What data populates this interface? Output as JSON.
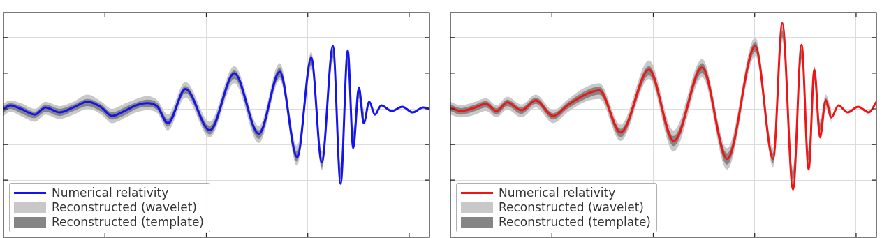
{
  "chart_data": [
    {
      "type": "line",
      "xlim": [
        0.25,
        0.46
      ],
      "ylim": [
        -1.8,
        1.35
      ],
      "xticks": [
        0.3,
        0.35,
        0.4,
        0.45
      ],
      "yticks": [
        -1,
        -0.5,
        0,
        0.5,
        1
      ],
      "grid": true,
      "tick_labels": false,
      "legend": "lower left",
      "series": [
        {
          "name": "Numerical relativity",
          "type": "line",
          "color": "#1414f0",
          "x": [
            0.25,
            0.2534,
            0.2586,
            0.2655,
            0.2707,
            0.2776,
            0.2845,
            0.2914,
            0.2983,
            0.3034,
            0.3103,
            0.3155,
            0.3207,
            0.3259,
            0.331,
            0.3397,
            0.3517,
            0.3638,
            0.3759,
            0.3862,
            0.3948,
            0.4017,
            0.4069,
            0.4124,
            0.4162,
            0.4197,
            0.4224,
            0.4252,
            0.4276,
            0.4303,
            0.4331,
            0.4362,
            0.4414,
            0.4466,
            0.4517,
            0.4569,
            0.46
          ],
          "values": [
            0.0,
            0.05,
            0.0,
            -0.08,
            0.02,
            -0.05,
            0.02,
            0.1,
            0.02,
            -0.1,
            -0.02,
            0.05,
            0.08,
            0.03,
            -0.2,
            0.28,
            -0.3,
            0.5,
            -0.35,
            0.52,
            -0.68,
            0.72,
            -0.75,
            0.88,
            -1.05,
            0.82,
            -0.55,
            0.3,
            -0.2,
            0.1,
            -0.08,
            0.05,
            -0.03,
            0.03,
            -0.05,
            0.02,
            0.0
          ]
        },
        {
          "name": "Reconstructed (wavelet)",
          "type": "band",
          "color": "#c8c8c8",
          "x": [
            0.25,
            0.2534,
            0.2586,
            0.2655,
            0.2707,
            0.2776,
            0.2845,
            0.2914,
            0.2983,
            0.3034,
            0.3103,
            0.3155,
            0.3207,
            0.3259,
            0.331,
            0.3397,
            0.3517,
            0.3638,
            0.3759,
            0.3862,
            0.3948,
            0.4017,
            0.4069,
            0.4124,
            0.4162,
            0.4197,
            0.4224,
            0.4252,
            0.4276
          ],
          "lower": [
            -0.1,
            -0.04,
            -0.1,
            -0.18,
            -0.08,
            -0.14,
            -0.08,
            0.0,
            -0.08,
            -0.2,
            -0.12,
            -0.05,
            -0.02,
            -0.06,
            -0.3,
            0.16,
            -0.4,
            0.36,
            -0.48,
            0.4,
            -0.8,
            0.56,
            -0.86,
            0.66,
            -1.0,
            0.55,
            -0.5,
            0.1,
            -0.2
          ],
          "upper": [
            0.08,
            0.12,
            0.08,
            0.0,
            0.1,
            0.04,
            0.1,
            0.2,
            0.1,
            0.0,
            0.08,
            0.14,
            0.18,
            0.12,
            -0.08,
            0.38,
            -0.18,
            0.6,
            -0.24,
            0.64,
            -0.52,
            0.8,
            -0.6,
            0.88,
            -0.76,
            0.78,
            -0.28,
            0.3,
            0.0
          ]
        },
        {
          "name": "Reconstructed (template)",
          "type": "band",
          "color": "#858585",
          "x": [
            0.25,
            0.2534,
            0.2586,
            0.2655,
            0.2707,
            0.2776,
            0.2845,
            0.2914,
            0.2983,
            0.3034,
            0.3103,
            0.3155,
            0.3207,
            0.3259,
            0.331,
            0.3397,
            0.3517,
            0.3638,
            0.3759,
            0.3862,
            0.3948,
            0.4017,
            0.4069,
            0.4124,
            0.4162,
            0.4197,
            0.4224,
            0.4252,
            0.4276
          ],
          "lower": [
            -0.05,
            0.0,
            -0.06,
            -0.13,
            -0.04,
            -0.1,
            -0.03,
            0.04,
            -0.04,
            -0.15,
            -0.08,
            0.0,
            0.03,
            -0.02,
            -0.25,
            0.22,
            -0.36,
            0.42,
            -0.42,
            0.44,
            -0.74,
            0.62,
            -0.82,
            0.72,
            -0.98,
            0.6,
            -0.45,
            0.15,
            -0.15
          ],
          "upper": [
            0.04,
            0.08,
            0.04,
            -0.04,
            0.06,
            0.0,
            0.06,
            0.14,
            0.06,
            -0.05,
            0.03,
            0.09,
            0.13,
            0.08,
            -0.14,
            0.32,
            -0.24,
            0.54,
            -0.3,
            0.58,
            -0.6,
            0.76,
            -0.68,
            0.84,
            -0.82,
            0.74,
            -0.32,
            0.25,
            -0.05
          ]
        }
      ]
    },
    {
      "type": "line",
      "xlim": [
        0.25,
        0.46
      ],
      "ylim": [
        -1.8,
        1.35
      ],
      "xticks": [
        0.3,
        0.35,
        0.4,
        0.45
      ],
      "yticks": [
        -1,
        -0.5,
        0,
        0.5,
        1
      ],
      "grid": true,
      "tick_labels": false,
      "legend": "lower left",
      "series": [
        {
          "name": "Numerical relativity",
          "type": "line",
          "color": "#f01414",
          "x": [
            0.25,
            0.2552,
            0.2622,
            0.2675,
            0.2727,
            0.278,
            0.285,
            0.292,
            0.3007,
            0.3077,
            0.3164,
            0.3234,
            0.3339,
            0.3479,
            0.3601,
            0.3741,
            0.3864,
            0.4003,
            0.4091,
            0.4136,
            0.4189,
            0.4231,
            0.4266,
            0.4294,
            0.4322,
            0.435,
            0.4378,
            0.4413,
            0.4458,
            0.451,
            0.4563,
            0.46
          ],
          "values": [
            0.02,
            -0.03,
            0.02,
            0.07,
            -0.03,
            0.09,
            -0.02,
            0.12,
            -0.1,
            0.05,
            0.2,
            0.26,
            -0.33,
            0.55,
            -0.45,
            0.58,
            -0.7,
            0.88,
            -0.7,
            1.2,
            -1.13,
            0.9,
            -0.85,
            0.55,
            -0.4,
            0.12,
            -0.12,
            0.05,
            -0.05,
            0.03,
            -0.05,
            0.1
          ]
        },
        {
          "name": "Reconstructed (wavelet)",
          "type": "band",
          "color": "#c8c8c8",
          "x": [
            0.25,
            0.2552,
            0.2622,
            0.2675,
            0.2727,
            0.278,
            0.285,
            0.292,
            0.3007,
            0.3077,
            0.3164,
            0.3234,
            0.3339,
            0.3479,
            0.3601,
            0.3741,
            0.3864,
            0.4003,
            0.4091,
            0.4136,
            0.4189,
            0.4231,
            0.4266,
            0.4294,
            0.4322,
            0.435,
            0.4378
          ],
          "lower": [
            -0.08,
            -0.12,
            -0.08,
            -0.03,
            -0.12,
            -0.01,
            -0.12,
            0.02,
            -0.2,
            -0.05,
            0.1,
            0.14,
            -0.45,
            0.42,
            -0.6,
            0.44,
            -0.85,
            0.74,
            -0.82,
            0.95,
            -1.05,
            0.65,
            -0.78,
            0.35,
            -0.35,
            0.0,
            -0.2
          ],
          "upper": [
            0.1,
            0.05,
            0.1,
            0.15,
            0.05,
            0.17,
            0.06,
            0.2,
            -0.02,
            0.13,
            0.3,
            0.36,
            -0.22,
            0.68,
            -0.3,
            0.7,
            -0.55,
            1.0,
            -0.55,
            1.15,
            -0.82,
            0.9,
            -0.55,
            0.6,
            -0.15,
            0.2,
            0.0
          ]
        },
        {
          "name": "Reconstructed (template)",
          "type": "band",
          "color": "#858585",
          "x": [
            0.25,
            0.2552,
            0.2622,
            0.2675,
            0.2727,
            0.278,
            0.285,
            0.292,
            0.3007,
            0.3077,
            0.3164,
            0.3234,
            0.3339,
            0.3479,
            0.3601,
            0.3741,
            0.3864,
            0.4003,
            0.4091,
            0.4136,
            0.4189,
            0.4231,
            0.4266,
            0.4294,
            0.4322,
            0.435,
            0.4378
          ],
          "lower": [
            -0.03,
            -0.08,
            -0.03,
            0.02,
            -0.08,
            0.04,
            -0.07,
            0.07,
            -0.15,
            0.0,
            0.14,
            0.2,
            -0.4,
            0.47,
            -0.52,
            0.5,
            -0.78,
            0.8,
            -0.76,
            1.0,
            -1.0,
            0.7,
            -0.72,
            0.4,
            -0.3,
            0.05,
            -0.15
          ],
          "upper": [
            0.06,
            0.01,
            0.06,
            0.11,
            0.01,
            0.13,
            0.02,
            0.16,
            -0.06,
            0.09,
            0.25,
            0.31,
            -0.28,
            0.6,
            -0.38,
            0.64,
            -0.62,
            0.94,
            -0.62,
            1.1,
            -0.88,
            0.84,
            -0.6,
            0.55,
            -0.2,
            0.15,
            -0.05
          ]
        }
      ]
    }
  ]
}
